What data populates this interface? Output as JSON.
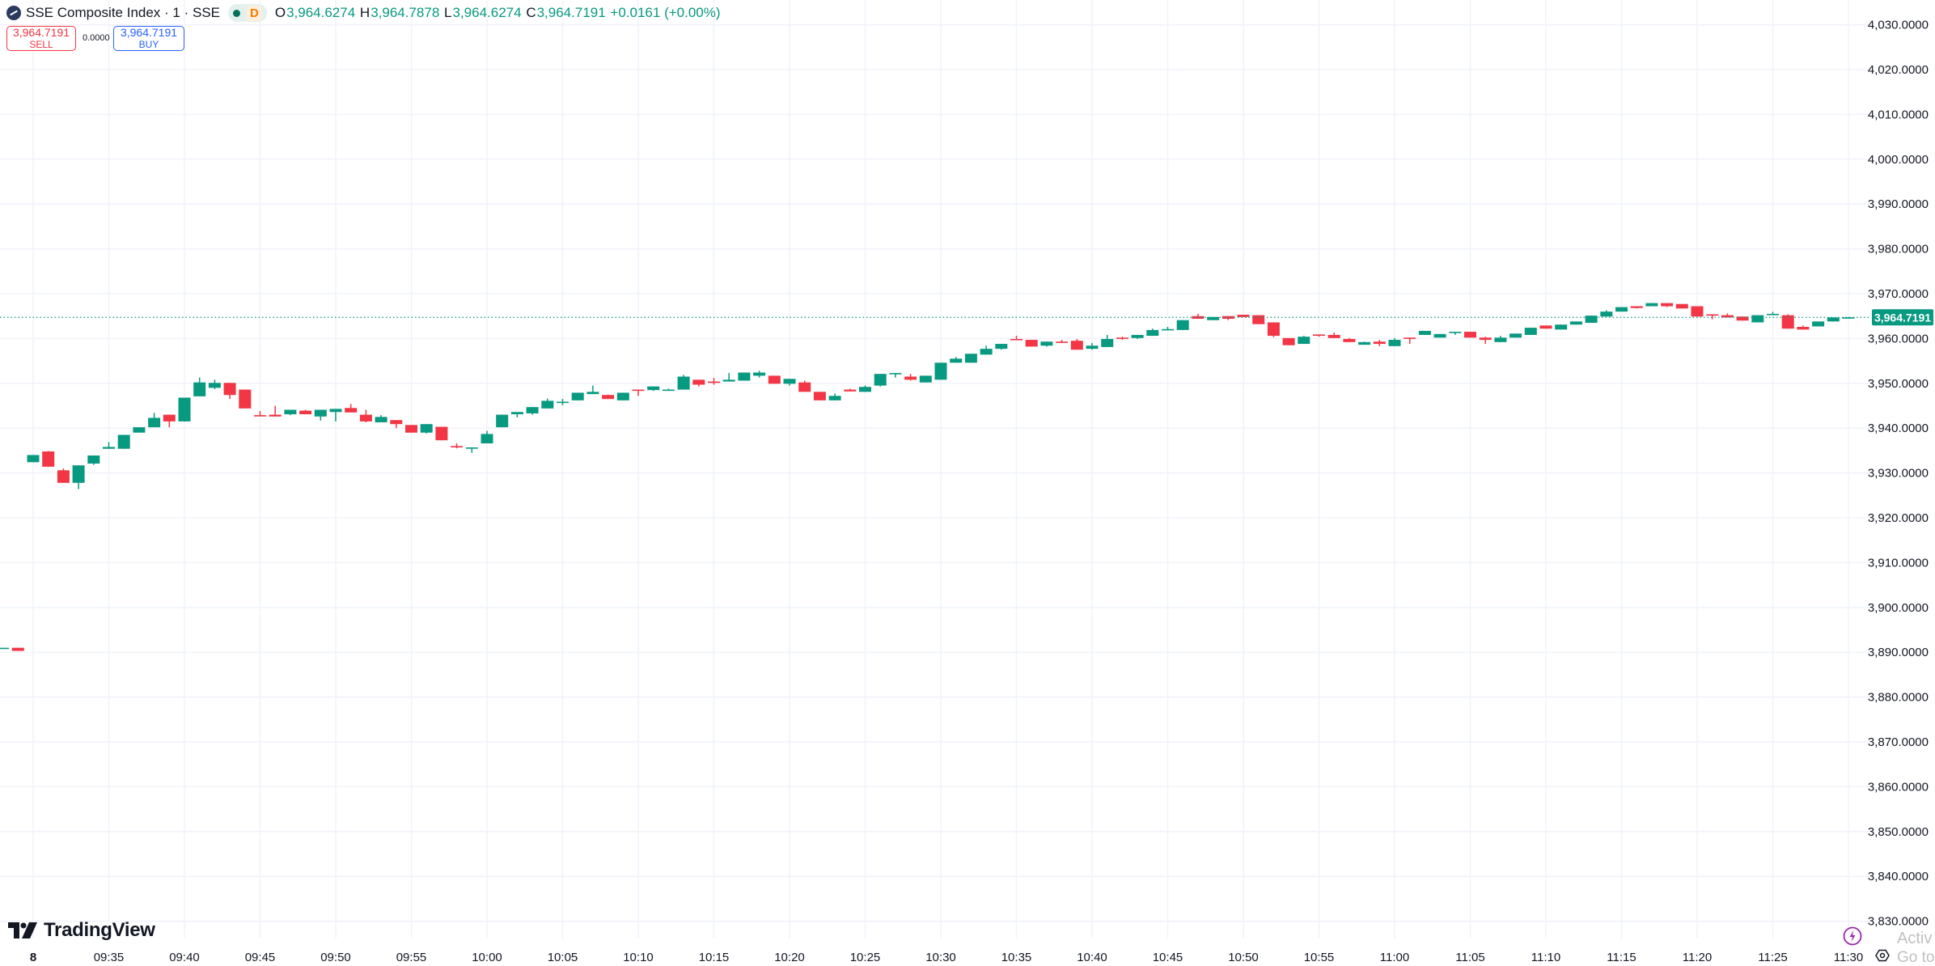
{
  "legend": {
    "title": "SSE Composite Index · 1 · SSE",
    "status_badge": "D",
    "open_label": "O",
    "open": "3,964.6274",
    "high_label": "H",
    "high": "3,964.7878",
    "low_label": "L",
    "low": "3,964.6274",
    "close_label": "C",
    "close": "3,964.7191",
    "change": "+0.0161 (+0.00%)"
  },
  "trade": {
    "sell_price": "3,964.7191",
    "sell_label": "SELL",
    "spread": "0.0000",
    "buy_price": "3,964.7191",
    "buy_label": "BUY"
  },
  "branding": {
    "logo_text": "TradingView"
  },
  "watermark": {
    "line1": "Activ",
    "line2": "Go to S"
  },
  "colors": {
    "up": "#089981",
    "down": "#f23645",
    "grid": "#f0f3fa",
    "text": "#131722",
    "last_price": "#089981"
  },
  "icons": {
    "symbol": "sse-logo-icon",
    "market_status": "market-open-dot-icon",
    "bolt": "lightning-icon",
    "settings": "gear-icon"
  },
  "chart_data": {
    "type": "candlestick",
    "interval": "1",
    "last_price": 3964.7191,
    "last_price_label": "3,964.7191",
    "ylim": [
      3830,
      4030
    ],
    "y_ticks": [
      "4,030.0000",
      "4,020.0000",
      "4,010.0000",
      "4,000.0000",
      "3,990.0000",
      "3,980.0000",
      "3,970.0000",
      "3,960.0000",
      "3,950.0000",
      "3,940.0000",
      "3,930.0000",
      "3,920.0000",
      "3,910.0000",
      "3,900.0000",
      "3,890.0000",
      "3,880.0000",
      "3,870.0000",
      "3,860.0000",
      "3,850.0000",
      "3,840.0000",
      "3,830.0000"
    ],
    "x_ticks": [
      "8",
      "09:35",
      "09:40",
      "09:45",
      "09:50",
      "09:55",
      "10:00",
      "10:05",
      "10:10",
      "10:15",
      "10:20",
      "10:25",
      "10:30",
      "10:35",
      "10:40",
      "10:45",
      "10:50",
      "10:55",
      "11:00",
      "11:05",
      "11:10",
      "11:15",
      "11:20",
      "11:25",
      "11:30"
    ],
    "grid": true,
    "previous_session": [
      [
        3890.9,
        3891.0,
        3890.9,
        3891.0
      ],
      [
        3891.0,
        3891.0,
        3890.3,
        3890.3
      ]
    ],
    "columns": [
      "time",
      "open",
      "high",
      "low",
      "close"
    ],
    "candles": [
      [
        "09:30",
        3932.4,
        3934.0,
        3932.4,
        3934.0
      ],
      [
        "09:31",
        3934.8,
        3934.9,
        3931.4,
        3931.4
      ],
      [
        "09:32",
        3930.6,
        3931.0,
        3927.8,
        3927.8
      ],
      [
        "09:33",
        3927.8,
        3931.7,
        3926.4,
        3931.7
      ],
      [
        "09:34",
        3932.1,
        3933.9,
        3931.8,
        3933.9
      ],
      [
        "09:35",
        3935.4,
        3936.9,
        3935.4,
        3935.8
      ],
      [
        "09:36",
        3935.4,
        3938.5,
        3935.4,
        3938.5
      ],
      [
        "09:37",
        3939.0,
        3940.2,
        3939.0,
        3940.2
      ],
      [
        "09:38",
        3940.2,
        3943.4,
        3940.2,
        3942.3
      ],
      [
        "09:39",
        3943.0,
        3943.0,
        3940.2,
        3941.5
      ],
      [
        "09:40",
        3941.5,
        3946.8,
        3941.5,
        3946.8
      ],
      [
        "09:41",
        3947.1,
        3951.3,
        3947.1,
        3950.2
      ],
      [
        "09:42",
        3949.0,
        3950.8,
        3948.7,
        3950.1
      ],
      [
        "09:43",
        3950.1,
        3950.1,
        3946.5,
        3947.4
      ],
      [
        "09:44",
        3948.6,
        3948.6,
        3944.4,
        3944.4
      ],
      [
        "09:45",
        3942.9,
        3943.8,
        3942.8,
        3942.8
      ],
      [
        "09:46",
        3943.0,
        3945.0,
        3942.6,
        3942.6
      ],
      [
        "09:47",
        3943.1,
        3944.1,
        3942.9,
        3944.1
      ],
      [
        "09:48",
        3943.9,
        3944.1,
        3943.1,
        3943.1
      ],
      [
        "09:49",
        3942.6,
        3944.1,
        3941.7,
        3944.1
      ],
      [
        "09:50",
        3943.6,
        3944.3,
        3941.5,
        3944.3
      ],
      [
        "09:51",
        3944.5,
        3945.4,
        3943.5,
        3943.5
      ],
      [
        "09:52",
        3943.0,
        3944.1,
        3941.3,
        3941.5
      ],
      [
        "09:53",
        3941.3,
        3942.9,
        3941.3,
        3942.5
      ],
      [
        "09:54",
        3941.8,
        3941.8,
        3940.0,
        3940.9
      ],
      [
        "09:55",
        3940.7,
        3940.7,
        3939.0,
        3939.0
      ],
      [
        "09:56",
        3939.0,
        3940.9,
        3938.8,
        3940.9
      ],
      [
        "09:57",
        3940.3,
        3940.3,
        3937.3,
        3937.3
      ],
      [
        "09:58",
        3936.0,
        3936.6,
        3935.5,
        3935.7
      ],
      [
        "09:59",
        3935.6,
        3935.7,
        3934.5,
        3935.7
      ],
      [
        "10:00",
        3936.6,
        3939.4,
        3936.6,
        3938.7
      ],
      [
        "10:01",
        3940.2,
        3943.0,
        3940.2,
        3943.0
      ],
      [
        "10:02",
        3943.1,
        3943.6,
        3942.4,
        3943.6
      ],
      [
        "10:03",
        3943.3,
        3944.7,
        3943.0,
        3944.7
      ],
      [
        "10:04",
        3944.4,
        3946.6,
        3944.4,
        3946.1
      ],
      [
        "10:05",
        3945.8,
        3946.5,
        3945.1,
        3945.9
      ],
      [
        "10:06",
        3946.2,
        3947.9,
        3946.2,
        3947.9
      ],
      [
        "10:07",
        3947.6,
        3949.5,
        3947.6,
        3948.1
      ],
      [
        "10:08",
        3947.4,
        3947.5,
        3946.5,
        3946.5
      ],
      [
        "10:09",
        3946.2,
        3947.9,
        3946.2,
        3947.9
      ],
      [
        "10:10",
        3948.6,
        3948.6,
        3947.2,
        3948.5
      ],
      [
        "10:11",
        3948.5,
        3949.3,
        3948.3,
        3949.3
      ],
      [
        "10:12",
        3948.5,
        3948.8,
        3948.5,
        3948.6
      ],
      [
        "10:13",
        3948.6,
        3951.9,
        3948.6,
        3951.5
      ],
      [
        "10:14",
        3950.8,
        3950.8,
        3949.3,
        3949.7
      ],
      [
        "10:15",
        3950.4,
        3951.2,
        3949.7,
        3950.1
      ],
      [
        "10:16",
        3950.4,
        3952.3,
        3950.4,
        3950.8
      ],
      [
        "10:17",
        3950.6,
        3952.4,
        3950.6,
        3952.4
      ],
      [
        "10:18",
        3951.7,
        3952.8,
        3951.3,
        3952.4
      ],
      [
        "10:19",
        3951.7,
        3951.7,
        3949.9,
        3949.9
      ],
      [
        "10:20",
        3949.9,
        3951.0,
        3949.5,
        3951.0
      ],
      [
        "10:21",
        3950.2,
        3950.6,
        3948.1,
        3948.1
      ],
      [
        "10:22",
        3948.1,
        3948.1,
        3946.2,
        3946.2
      ],
      [
        "10:23",
        3946.2,
        3947.7,
        3946.2,
        3947.2
      ],
      [
        "10:24",
        3948.6,
        3948.8,
        3948.2,
        3948.2
      ],
      [
        "10:25",
        3948.1,
        3949.5,
        3948.1,
        3949.2
      ],
      [
        "10:26",
        3949.5,
        3952.1,
        3949.3,
        3952.1
      ],
      [
        "10:27",
        3952.2,
        3952.3,
        3951.3,
        3952.3
      ],
      [
        "10:28",
        3951.5,
        3952.1,
        3950.6,
        3950.8
      ],
      [
        "10:29",
        3950.2,
        3951.7,
        3950.2,
        3951.7
      ],
      [
        "10:30",
        3950.8,
        3954.6,
        3950.8,
        3954.6
      ],
      [
        "10:31",
        3954.6,
        3955.9,
        3954.6,
        3955.5
      ],
      [
        "10:32",
        3954.6,
        3956.6,
        3954.6,
        3956.6
      ],
      [
        "10:33",
        3956.4,
        3958.4,
        3956.4,
        3957.7
      ],
      [
        "10:34",
        3957.7,
        3958.8,
        3957.5,
        3958.8
      ],
      [
        "10:35",
        3959.9,
        3960.6,
        3959.8,
        3959.8
      ],
      [
        "10:36",
        3959.7,
        3959.7,
        3958.2,
        3958.2
      ],
      [
        "10:37",
        3958.4,
        3959.3,
        3958.2,
        3959.3
      ],
      [
        "10:38",
        3959.3,
        3959.7,
        3959.0,
        3959.2
      ],
      [
        "10:39",
        3959.5,
        3959.9,
        3957.5,
        3957.5
      ],
      [
        "10:40",
        3957.7,
        3959.0,
        3957.5,
        3958.4
      ],
      [
        "10:41",
        3958.1,
        3960.8,
        3958.1,
        3959.9
      ],
      [
        "10:42",
        3960.2,
        3960.4,
        3959.7,
        3960.1
      ],
      [
        "10:43",
        3960.1,
        3960.8,
        3959.9,
        3960.8
      ],
      [
        "10:44",
        3960.6,
        3962.2,
        3960.6,
        3961.9
      ],
      [
        "10:45",
        3962.0,
        3962.6,
        3962.0,
        3962.1
      ],
      [
        "10:46",
        3961.9,
        3964.1,
        3961.9,
        3964.1
      ],
      [
        "10:47",
        3965.0,
        3965.5,
        3964.4,
        3964.4
      ],
      [
        "10:48",
        3964.1,
        3964.8,
        3964.1,
        3964.8
      ],
      [
        "10:49",
        3965.0,
        3965.0,
        3964.1,
        3964.4
      ],
      [
        "10:50",
        3965.3,
        3965.3,
        3964.8,
        3964.8
      ],
      [
        "10:51",
        3965.2,
        3965.2,
        3963.2,
        3963.2
      ],
      [
        "10:52",
        3963.6,
        3963.6,
        3960.3,
        3960.6
      ],
      [
        "10:53",
        3960.1,
        3960.1,
        3958.5,
        3958.5
      ],
      [
        "10:54",
        3958.8,
        3960.6,
        3958.8,
        3960.4
      ],
      [
        "10:55",
        3960.9,
        3960.9,
        3960.4,
        3960.6
      ],
      [
        "10:56",
        3960.8,
        3961.3,
        3960.1,
        3960.1
      ],
      [
        "10:57",
        3959.9,
        3960.1,
        3959.2,
        3959.2
      ],
      [
        "10:58",
        3958.6,
        3959.3,
        3958.6,
        3959.2
      ],
      [
        "10:59",
        3959.3,
        3959.7,
        3958.3,
        3958.8
      ],
      [
        "11:00",
        3958.3,
        3960.1,
        3958.3,
        3959.7
      ],
      [
        "11:01",
        3960.2,
        3960.2,
        3958.8,
        3960.1
      ],
      [
        "11:02",
        3960.8,
        3961.7,
        3960.8,
        3961.7
      ],
      [
        "11:03",
        3960.2,
        3961.0,
        3960.2,
        3961.0
      ],
      [
        "11:04",
        3961.4,
        3961.5,
        3960.8,
        3961.5
      ],
      [
        "11:05",
        3961.5,
        3961.5,
        3960.2,
        3960.2
      ],
      [
        "11:06",
        3960.2,
        3960.4,
        3958.8,
        3959.7
      ],
      [
        "11:07",
        3959.2,
        3960.6,
        3959.2,
        3960.2
      ],
      [
        "11:08",
        3960.2,
        3961.1,
        3960.2,
        3961.1
      ],
      [
        "11:09",
        3960.8,
        3962.4,
        3960.8,
        3962.4
      ],
      [
        "11:10",
        3962.9,
        3962.9,
        3962.2,
        3962.2
      ],
      [
        "11:11",
        3962.0,
        3963.1,
        3962.0,
        3963.1
      ],
      [
        "11:12",
        3963.1,
        3963.8,
        3963.1,
        3963.8
      ],
      [
        "11:13",
        3963.5,
        3965.1,
        3963.5,
        3965.1
      ],
      [
        "11:14",
        3964.9,
        3966.3,
        3964.9,
        3966.0
      ],
      [
        "11:15",
        3966.0,
        3967.0,
        3966.0,
        3967.0
      ],
      [
        "11:16",
        3967.2,
        3967.2,
        3966.7,
        3966.8
      ],
      [
        "11:17",
        3967.2,
        3967.9,
        3967.2,
        3967.9
      ],
      [
        "11:18",
        3967.9,
        3967.9,
        3967.0,
        3967.2
      ],
      [
        "11:19",
        3967.7,
        3967.7,
        3966.7,
        3966.7
      ],
      [
        "11:20",
        3967.2,
        3967.2,
        3964.9,
        3964.9
      ],
      [
        "11:21",
        3965.4,
        3965.4,
        3964.3,
        3965.1
      ],
      [
        "11:22",
        3965.2,
        3965.6,
        3964.7,
        3964.7
      ],
      [
        "11:23",
        3964.9,
        3964.9,
        3964.0,
        3964.0
      ],
      [
        "11:24",
        3963.6,
        3965.2,
        3963.6,
        3965.2
      ],
      [
        "11:25",
        3965.4,
        3965.95,
        3965.4,
        3965.5
      ],
      [
        "11:26",
        3965.2,
        3965.4,
        3962.2,
        3962.2
      ],
      [
        "11:27",
        3962.6,
        3962.9,
        3962.0,
        3962.0
      ],
      [
        "11:28",
        3962.7,
        3963.8,
        3962.7,
        3963.8
      ],
      [
        "11:29",
        3963.8,
        3964.7,
        3963.8,
        3964.7
      ],
      [
        "11:30",
        3964.6274,
        3964.7878,
        3964.6274,
        3964.7191
      ]
    ]
  }
}
